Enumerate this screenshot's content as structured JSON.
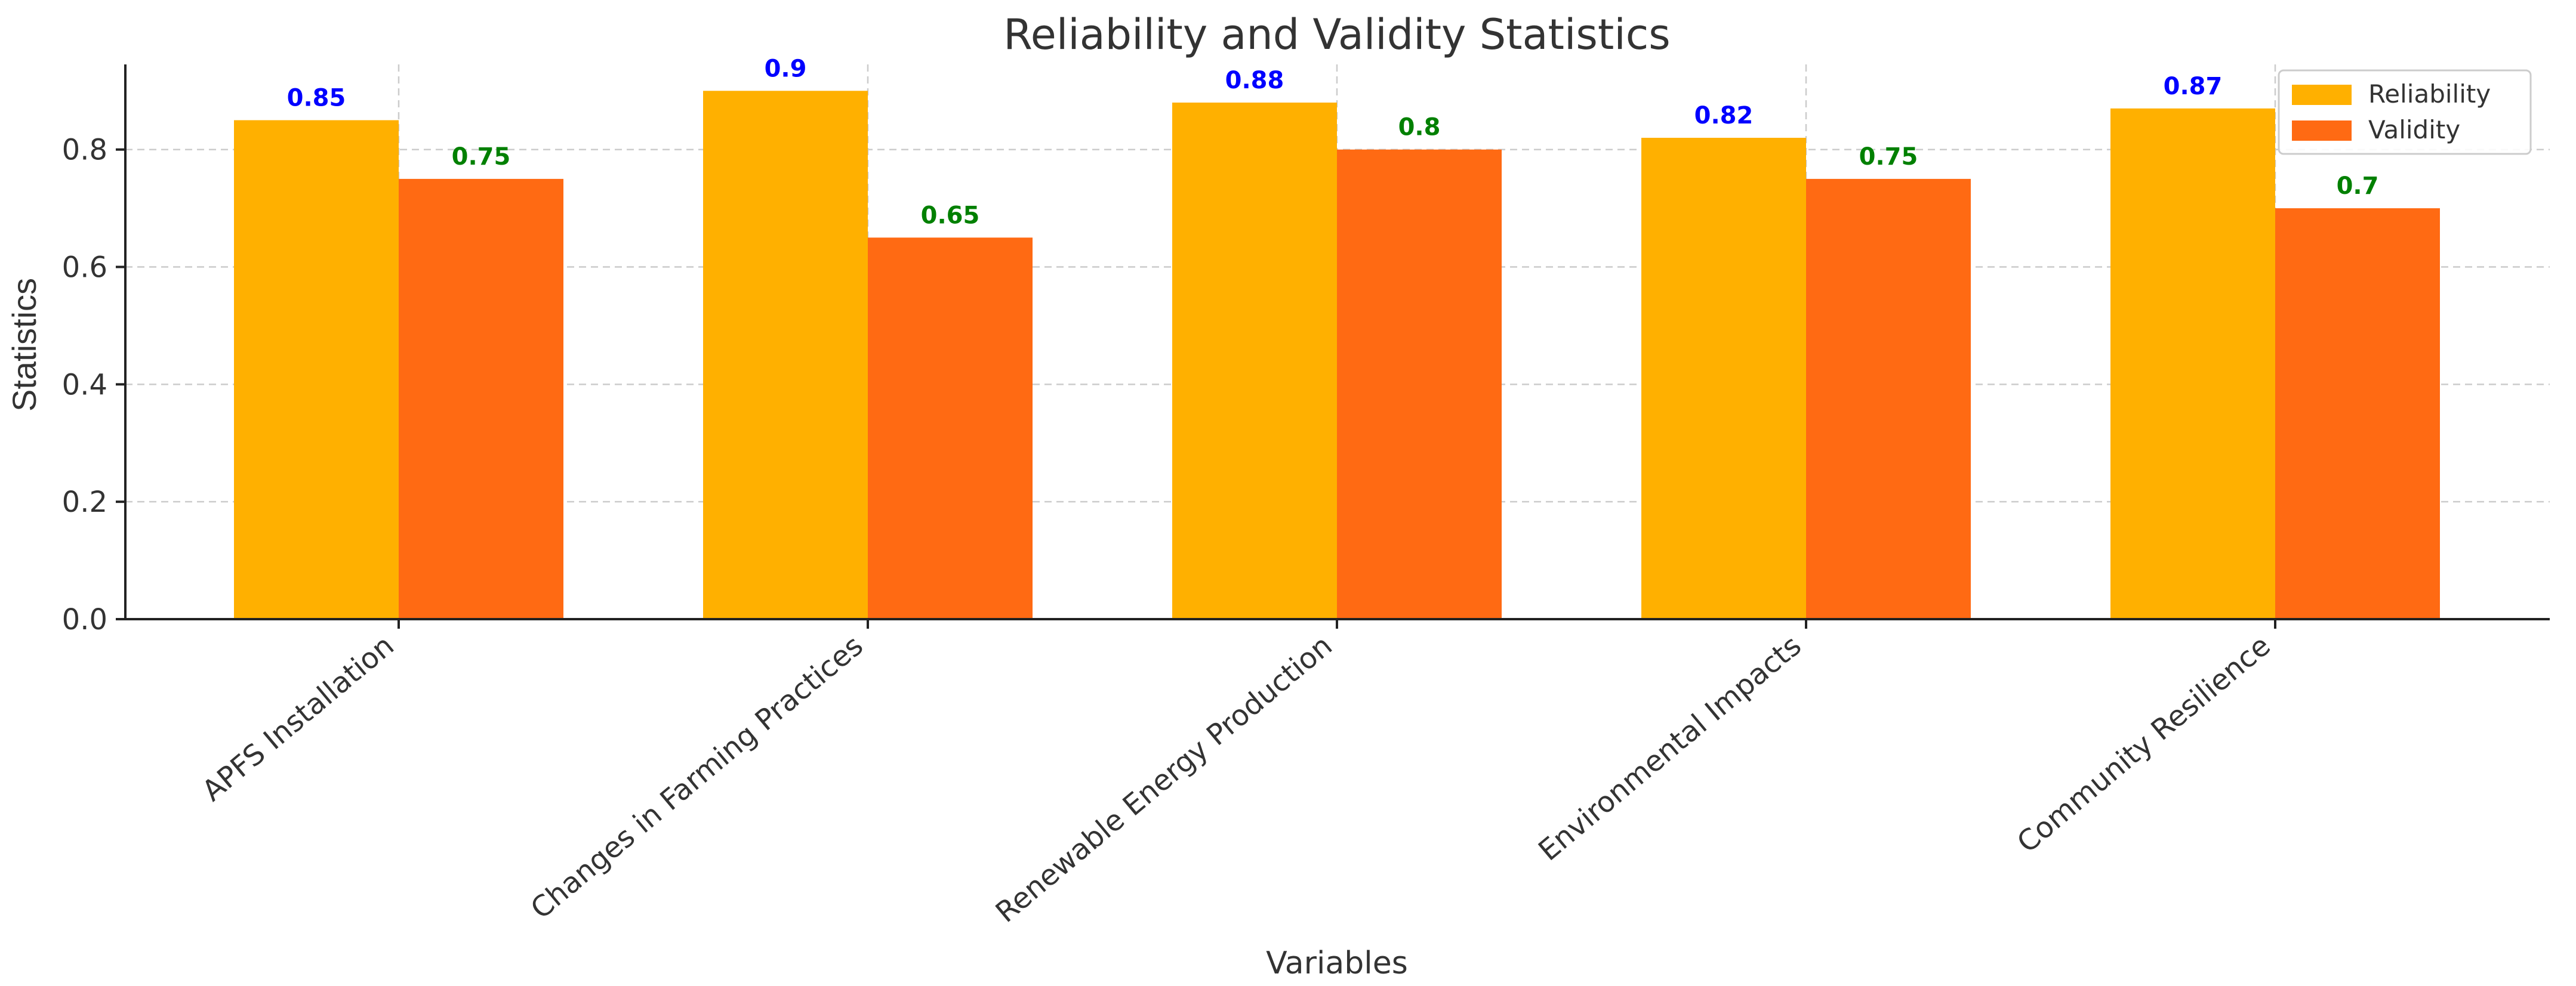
{
  "chart_data": {
    "type": "bar",
    "title": "Reliability and Validity Statistics",
    "xlabel": "Variables",
    "ylabel": "Statistics",
    "ylim": [
      0,
      0.945
    ],
    "yticks": [
      0.0,
      0.2,
      0.4,
      0.6,
      0.8
    ],
    "ytick_labels": [
      "0.0",
      "0.2",
      "0.4",
      "0.6",
      "0.8"
    ],
    "grid": true,
    "legend_position": "top-right",
    "categories": [
      "APFS Installation",
      "Changes in Farming Practices",
      "Renewable Energy Production",
      "Environmental Impacts",
      "Community Resilience"
    ],
    "series": [
      {
        "name": "Reliability",
        "values": [
          0.85,
          0.9,
          0.88,
          0.82,
          0.87
        ],
        "labels": [
          "0.85",
          "0.9",
          "0.88",
          "0.82",
          "0.87"
        ],
        "color": "#FFB000",
        "label_color": "#0000FF"
      },
      {
        "name": "Validity",
        "values": [
          0.75,
          0.65,
          0.8,
          0.75,
          0.7
        ],
        "labels": [
          "0.75",
          "0.65",
          "0.8",
          "0.75",
          "0.7"
        ],
        "color": "#FF6A13",
        "label_color": "#008000"
      }
    ]
  }
}
